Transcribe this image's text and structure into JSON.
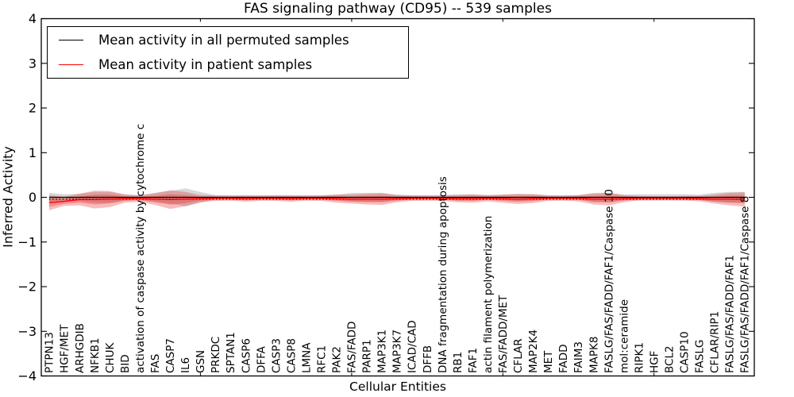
{
  "title": "FAS signaling pathway (CD95) -- 539 samples",
  "axes": {
    "x_label": "Cellular Entities",
    "y_label": "Inferred Activity",
    "y_ticks": [
      {
        "label": "4",
        "value": 4
      },
      {
        "label": "3",
        "value": 3
      },
      {
        "label": "2",
        "value": 2
      },
      {
        "label": "1",
        "value": 1
      },
      {
        "label": "0",
        "value": 0
      },
      {
        "label": "−1",
        "value": -1
      },
      {
        "label": "−2",
        "value": -2
      },
      {
        "label": "−3",
        "value": -3
      },
      {
        "label": "−4",
        "value": -4
      }
    ]
  },
  "legend": {
    "items": [
      {
        "label": "Mean activity in all permuted samples",
        "color": "#000000"
      },
      {
        "label": "Mean activity in patient samples",
        "color": "#ff0000"
      }
    ]
  },
  "colors": {
    "frame": "#000000",
    "permuted_line": "#000000",
    "patient_line": "#ff0000",
    "permuted_band": "#a0a0a0",
    "patient_band": "#e32222"
  },
  "chart_data": {
    "type": "line",
    "title": "FAS signaling pathway (CD95) -- 539 samples",
    "xlabel": "Cellular Entities",
    "ylabel": "Inferred Activity",
    "ylim": [
      -4,
      4
    ],
    "grid": false,
    "legend_position": "upper left",
    "dotted_reference_line": {
      "style": "dotted",
      "color": "#000000",
      "value": -0.04
    },
    "categories": [
      "PTPN13",
      "HGF/MET",
      "ARHGDIB",
      "NFKB1",
      "CHUK",
      "BID",
      "activation of caspase activity by cytochrome c",
      "FAS",
      "CASP7",
      "IL6",
      "GSN",
      "PRKDC",
      "SPTAN1",
      "CASP6",
      "DFFA",
      "CASP3",
      "CASP8",
      "LMNA",
      "RFC1",
      "PAK2",
      "FAS/FADD",
      "PARP1",
      "MAP3K1",
      "MAP3K7",
      "ICAD/CAD",
      "DFFB",
      "DNA fragmentation during apoptosis",
      "RB1",
      "FAF1",
      "actin filament polymerization",
      "FAS/FADD/MET",
      "CFLAR",
      "MAP2K4",
      "MET",
      "FADD",
      "FAIM3",
      "MAPK8",
      "FASLG/FAS/FADD/FAF1/Caspase 10",
      "mol:ceramide",
      "RIPK1",
      "HGF",
      "BCL2",
      "CASP10",
      "FASLG",
      "CFLAR/RIP1",
      "FASLG/FAS/FADD/FAF1",
      "FASLG/FAS/FADD/FAF1/Caspase 8"
    ],
    "series": [
      {
        "name": "Mean activity in all permuted samples",
        "color": "#000000",
        "values": [
          0,
          0,
          0,
          0,
          0,
          0,
          0,
          0,
          0,
          0,
          0,
          0,
          0,
          0,
          0,
          0,
          0,
          0,
          0,
          0,
          0,
          0,
          0,
          0,
          0,
          0,
          0,
          0,
          0,
          0,
          0,
          0,
          0,
          0,
          0,
          0,
          0,
          0,
          0,
          0,
          0,
          0,
          0,
          0,
          0,
          0,
          0
        ],
        "std_band": [
          0.1,
          0.07,
          0.08,
          0.12,
          0.12,
          0.07,
          0.05,
          0.1,
          0.14,
          0.2,
          0.12,
          0.05,
          0.05,
          0.05,
          0.05,
          0.05,
          0.05,
          0.05,
          0.05,
          0.06,
          0.1,
          0.1,
          0.1,
          0.06,
          0.05,
          0.05,
          0.05,
          0.07,
          0.07,
          0.05,
          0.06,
          0.08,
          0.07,
          0.05,
          0.05,
          0.05,
          0.1,
          0.1,
          0.06,
          0.07,
          0.07,
          0.07,
          0.07,
          0.06,
          0.1,
          0.12,
          0.12
        ]
      },
      {
        "name": "Mean activity in patient samples",
        "color": "#ff0000",
        "values": [
          -0.12,
          -0.09,
          -0.05,
          -0.05,
          -0.04,
          -0.03,
          -0.03,
          -0.04,
          -0.05,
          -0.04,
          -0.03,
          -0.02,
          -0.02,
          -0.03,
          -0.02,
          -0.02,
          -0.03,
          -0.02,
          -0.02,
          -0.03,
          -0.04,
          -0.04,
          -0.04,
          -0.03,
          -0.02,
          -0.02,
          -0.02,
          -0.03,
          -0.03,
          -0.02,
          -0.03,
          -0.04,
          -0.03,
          -0.02,
          -0.02,
          -0.02,
          -0.04,
          -0.04,
          -0.03,
          -0.02,
          -0.02,
          -0.02,
          -0.02,
          -0.03,
          -0.04,
          -0.04,
          -0.05
        ],
        "std_band": [
          0.17,
          0.1,
          0.13,
          0.2,
          0.18,
          0.09,
          0.07,
          0.13,
          0.21,
          0.16,
          0.08,
          0.06,
          0.055,
          0.07,
          0.055,
          0.06,
          0.07,
          0.055,
          0.06,
          0.09,
          0.1,
          0.12,
          0.13,
          0.08,
          0.06,
          0.055,
          0.06,
          0.08,
          0.09,
          0.07,
          0.09,
          0.11,
          0.1,
          0.06,
          0.055,
          0.07,
          0.12,
          0.14,
          0.08,
          0.05,
          0.045,
          0.045,
          0.05,
          0.06,
          0.1,
          0.14,
          0.16
        ]
      }
    ]
  }
}
